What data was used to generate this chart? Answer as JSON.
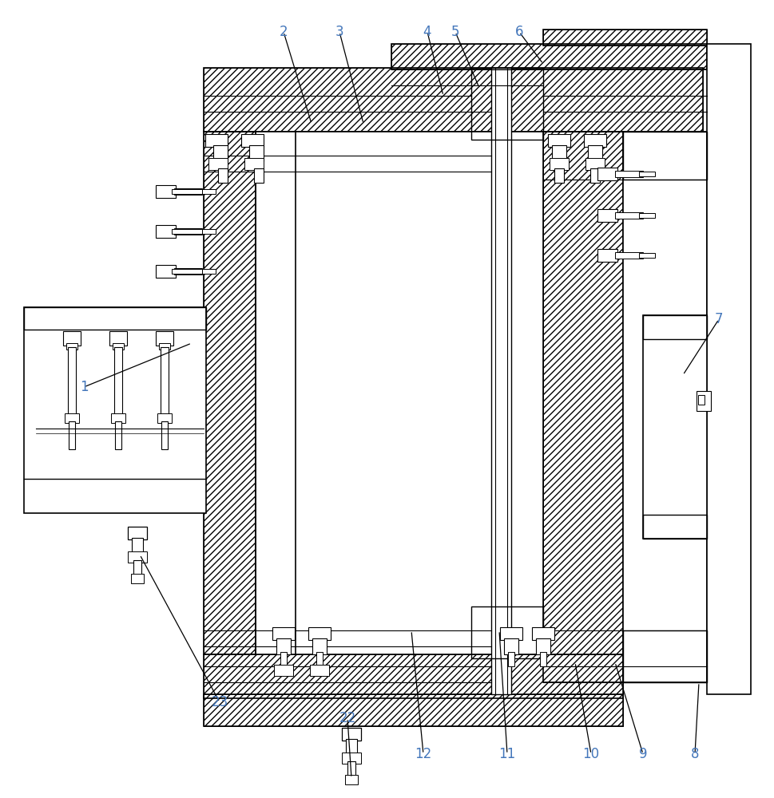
{
  "bg_color": "#ffffff",
  "lc": "#000000",
  "label_color": "#4477bb",
  "fig_width": 9.69,
  "fig_height": 10.0,
  "annotations": [
    [
      "1",
      105,
      485,
      240,
      430
    ],
    [
      "2",
      355,
      40,
      390,
      155
    ],
    [
      "3",
      425,
      40,
      455,
      155
    ],
    [
      "4",
      535,
      40,
      555,
      120
    ],
    [
      "5",
      570,
      40,
      600,
      110
    ],
    [
      "6",
      650,
      40,
      680,
      80
    ],
    [
      "7",
      900,
      400,
      855,
      470
    ],
    [
      "8",
      870,
      945,
      875,
      855
    ],
    [
      "9",
      805,
      945,
      770,
      830
    ],
    [
      "10",
      740,
      945,
      720,
      830
    ],
    [
      "11",
      635,
      945,
      625,
      790
    ],
    [
      "12",
      530,
      945,
      515,
      790
    ],
    [
      "22",
      435,
      900,
      440,
      975
    ],
    [
      "23",
      275,
      880,
      175,
      695
    ]
  ]
}
